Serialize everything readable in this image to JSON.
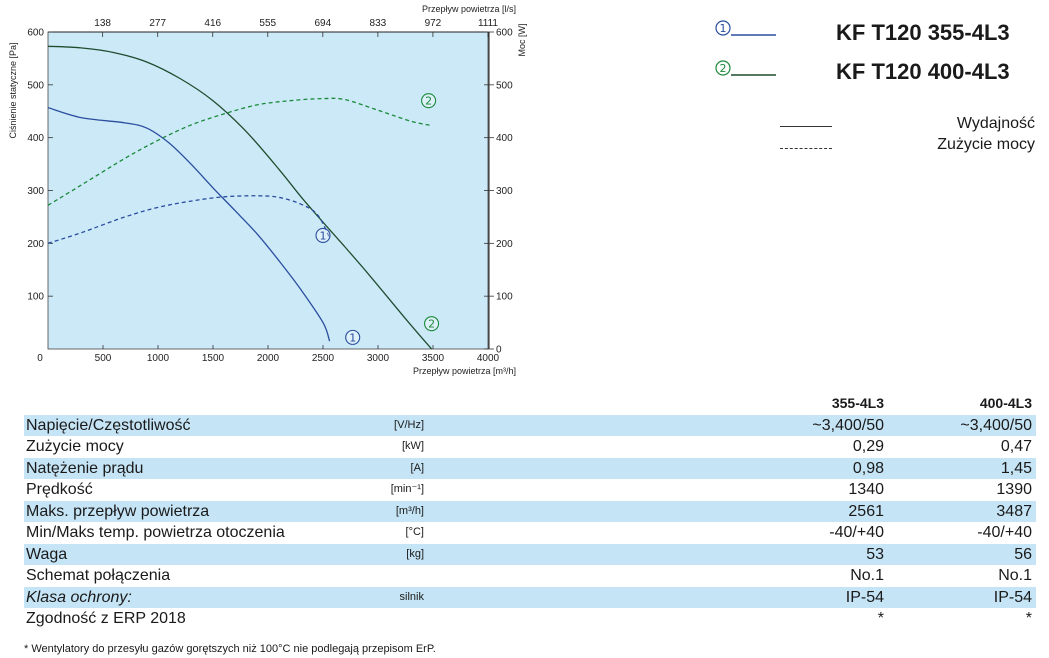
{
  "chart_data": {
    "type": "line",
    "xlabel": "Przepływ powietrza [m³/h]",
    "x2label": "Przepływ powietrza [l/s]",
    "ylabel": "Ciśnienie statyczne [Pa]",
    "y2label": "Moc [W]",
    "xlim": [
      0,
      4000
    ],
    "ylim": [
      0,
      600
    ],
    "y2lim": [
      0,
      600
    ],
    "x_ticks": [
      "0",
      "500",
      "1000",
      "1500",
      "2000",
      "2500",
      "3000",
      "3500",
      "4000"
    ],
    "x2_ticks": [
      "138",
      "277",
      "416",
      "555",
      "694",
      "833",
      "972",
      "1111"
    ],
    "y_ticks": [
      "100",
      "200",
      "300",
      "400",
      "500",
      "600"
    ],
    "y2_ticks": [
      "0",
      "100",
      "200",
      "300",
      "400",
      "500",
      "600"
    ],
    "series": [
      {
        "name": "①",
        "role": "pressure",
        "style": "solid",
        "color": "#2a4e9e",
        "x": [
          0,
          300,
          700,
          900,
          1100,
          1300,
          1500,
          1700,
          1900,
          2100,
          2300,
          2500,
          2560
        ],
        "y": [
          457,
          438,
          428,
          418,
          390,
          350,
          305,
          262,
          218,
          167,
          112,
          50,
          15
        ]
      },
      {
        "name": "②",
        "role": "pressure",
        "style": "solid",
        "color": "#1f4d2e",
        "x": [
          0,
          300,
          600,
          900,
          1200,
          1500,
          1800,
          2100,
          2300,
          2500,
          2700,
          2900,
          3100,
          3300,
          3487
        ],
        "y": [
          573,
          570,
          561,
          543,
          512,
          470,
          412,
          340,
          288,
          240,
          193,
          145,
          95,
          45,
          0
        ]
      },
      {
        "name": "①",
        "role": "power",
        "style": "dashed",
        "color": "#2a4e9e",
        "x": [
          0,
          300,
          700,
          1000,
          1300,
          1600,
          1900,
          2100,
          2300,
          2450,
          2561
        ],
        "y": [
          200,
          220,
          250,
          268,
          280,
          288,
          290,
          287,
          274,
          254,
          210
        ]
      },
      {
        "name": "②",
        "role": "power",
        "style": "dashed",
        "color": "#1a8a3a",
        "x": [
          0,
          300,
          700,
          1000,
          1300,
          1600,
          1900,
          2200,
          2500,
          2700,
          3000,
          3300,
          3487
        ],
        "y": [
          272,
          310,
          361,
          395,
          424,
          445,
          462,
          470,
          474,
          472,
          452,
          431,
          423
        ]
      }
    ],
    "markers": [
      {
        "label": "①",
        "x": 2500,
        "y": 215
      },
      {
        "label": "①",
        "x": 2770,
        "y": 22
      },
      {
        "label": "②",
        "x": 3460,
        "y": 470
      },
      {
        "label": "②",
        "x": 3487,
        "y": 48
      }
    ],
    "grid": false,
    "background": "#cce9f8"
  },
  "legend": {
    "models": [
      {
        "symbol": "①",
        "name": "KF T120 355-4L3",
        "color": "#2a4e9e"
      },
      {
        "symbol": "②",
        "name": "KF T120 400-4L3",
        "color": "#1a8a3a"
      }
    ],
    "line_types": [
      {
        "label": "Wydajność",
        "style": "solid"
      },
      {
        "label": "Zużycie mocy",
        "style": "dashed"
      }
    ]
  },
  "specs": {
    "col_headers": [
      "355-4L3",
      "400-4L3"
    ],
    "rows": [
      {
        "name": "Napięcie/Częstotliwość",
        "unit": "[V/Hz]",
        "v1": "~3,400/50",
        "v2": "~3,400/50",
        "shade": true
      },
      {
        "name": "Zużycie mocy",
        "unit": "[kW]",
        "v1": "0,29",
        "v2": "0,47",
        "shade": false
      },
      {
        "name": "Natężenie prądu",
        "unit": "[A]",
        "v1": "0,98",
        "v2": "1,45",
        "shade": true
      },
      {
        "name": "Prędkość",
        "unit": "[min⁻¹]",
        "v1": "1340",
        "v2": "1390",
        "shade": false
      },
      {
        "name": "Maks. przepływ powietrza",
        "unit": "[m³/h]",
        "v1": "2561",
        "v2": "3487",
        "shade": true
      },
      {
        "name": "Min/Maks temp. powietrza otoczenia",
        "unit": "[°C]",
        "v1": "-40/+40",
        "v2": "-40/+40",
        "shade": false
      },
      {
        "name": "Waga",
        "unit": "[kg]",
        "v1": "53",
        "v2": "56",
        "shade": true
      },
      {
        "name": "Schemat połączenia",
        "unit": "",
        "v1": "No.1",
        "v2": "No.1",
        "shade": false
      },
      {
        "name": "Klasa ochrony:",
        "unit": "silnik",
        "v1": "IP-54",
        "v2": "IP-54",
        "shade": true,
        "italic": true
      },
      {
        "name": "Zgodność z ERP 2018",
        "unit": "",
        "v1": "*",
        "v2": "*",
        "shade": false
      }
    ]
  },
  "footnote": "* Wentylatory do przesyłu gazów gorętszych niż 100°C nie podlegają przepisom ErP."
}
